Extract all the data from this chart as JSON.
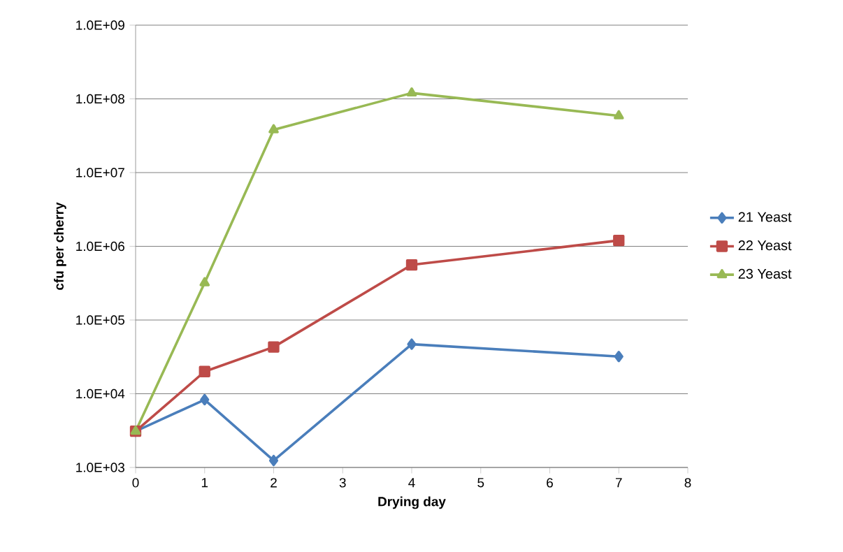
{
  "chart_data": {
    "type": "line",
    "xlabel": "Drying day",
    "ylabel": "cfu per cherry",
    "x": [
      0,
      1,
      2,
      4,
      7
    ],
    "series": [
      {
        "name": "21 Yeast",
        "color": "#4a7ebb",
        "marker": "diamond",
        "values": [
          3100,
          8300,
          1240,
          47000,
          32000
        ]
      },
      {
        "name": "22 Yeast",
        "color": "#be4b48",
        "marker": "square",
        "values": [
          3100,
          20000,
          43000,
          560000,
          1200000
        ]
      },
      {
        "name": "23 Yeast",
        "color": "#98b954",
        "marker": "triangle",
        "values": [
          3100,
          320000,
          38000000,
          120000000,
          59000000
        ]
      }
    ],
    "log": "y",
    "xlim": [
      0,
      8
    ],
    "ylim": [
      1000,
      1000000000
    ],
    "xticks": [
      0,
      1,
      2,
      3,
      4,
      5,
      6,
      7,
      8
    ],
    "yticks": [
      {
        "value": 1000,
        "label": "1.0E+03"
      },
      {
        "value": 10000,
        "label": "1.0E+04"
      },
      {
        "value": 100000,
        "label": "1.0E+05"
      },
      {
        "value": 1000000,
        "label": "1.0E+06"
      },
      {
        "value": 10000000,
        "label": "1.0E+07"
      },
      {
        "value": 100000000,
        "label": "1.0E+08"
      },
      {
        "value": 1000000000,
        "label": "1.0E+09"
      }
    ],
    "grid": "y",
    "legend": "right",
    "line_style": "solid"
  }
}
